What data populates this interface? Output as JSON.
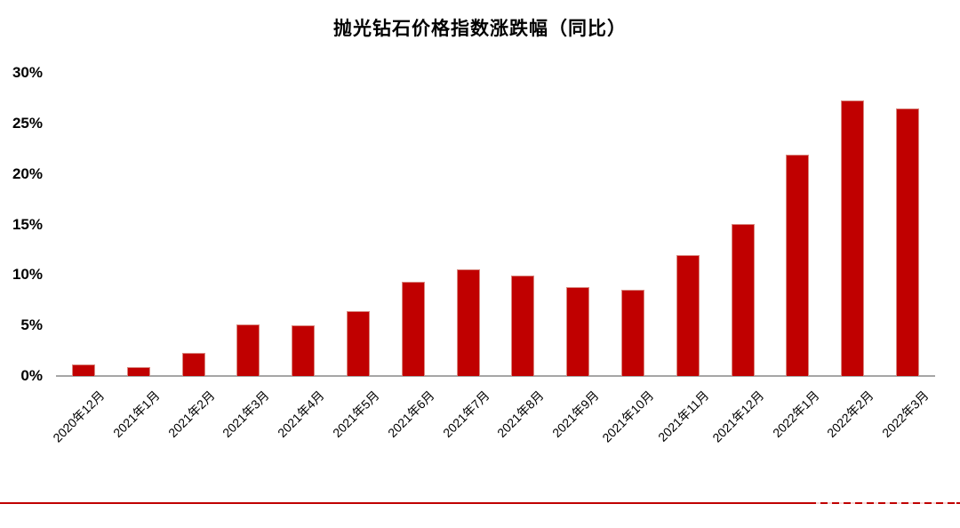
{
  "chart_data": {
    "type": "bar",
    "title": "抛光钻石价格指数涨跌幅（同比）",
    "categories": [
      "2020年12月",
      "2021年1月",
      "2021年2月",
      "2021年3月",
      "2021年4月",
      "2021年5月",
      "2021年6月",
      "2021年7月",
      "2021年8月",
      "2021年9月",
      "2021年10月",
      "2021年11月",
      "2021年12月",
      "2022年1月",
      "2022年2月",
      "2022年3月"
    ],
    "values": [
      1.1,
      0.9,
      2.3,
      5.1,
      5.0,
      6.4,
      9.3,
      10.6,
      9.9,
      8.8,
      8.5,
      12.0,
      15.0,
      21.9,
      27.3,
      26.5
    ],
    "unit": "%",
    "xlabel": "",
    "ylabel": "",
    "ylim": [
      0,
      30
    ],
    "ytick_step": 5,
    "ytick_labels": [
      "0%",
      "5%",
      "10%",
      "15%",
      "20%",
      "25%",
      "30%"
    ],
    "grid": false,
    "legend": "none",
    "colors": {
      "bar_fill": "#c00000",
      "bar_edge": "#d98880",
      "axis_line": "#a6a6a6",
      "bottom_rule": "#c00000",
      "text": "#000000",
      "background": "#ffffff"
    }
  }
}
